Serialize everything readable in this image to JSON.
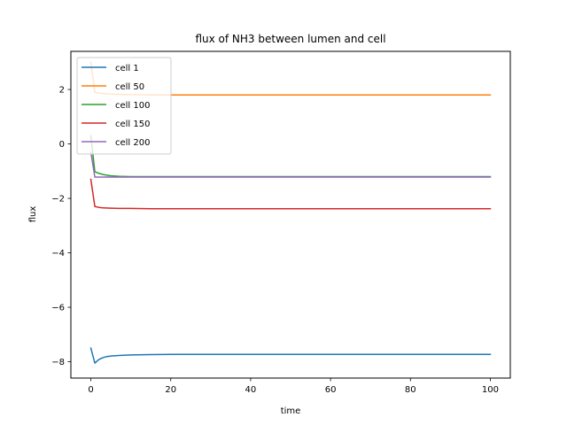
{
  "chart_data": {
    "type": "line",
    "title": "flux of NH3 between lumen and cell",
    "xlabel": "time",
    "ylabel": "flux",
    "xlim": [
      -5,
      105
    ],
    "ylim": [
      -8.6,
      3.4
    ],
    "xticks": [
      0,
      20,
      40,
      60,
      80,
      100
    ],
    "yticks": [
      -8,
      -6,
      -4,
      -2,
      0,
      2
    ],
    "ytick_labels": [
      "−8",
      "−6",
      "−4",
      "−2",
      "0",
      "2"
    ],
    "grid": false,
    "legend": "top-left",
    "series": [
      {
        "name": "cell 1",
        "color": "#1f77b4",
        "x": [
          0,
          1,
          2,
          3,
          4,
          5,
          7,
          10,
          15,
          20,
          30,
          50,
          100
        ],
        "y": [
          -7.5,
          -8.05,
          -7.92,
          -7.85,
          -7.81,
          -7.79,
          -7.77,
          -7.75,
          -7.74,
          -7.73,
          -7.73,
          -7.73,
          -7.73
        ]
      },
      {
        "name": "cell 50",
        "color": "#ff7f0e",
        "x": [
          0,
          1,
          2,
          3,
          5,
          7,
          10,
          15,
          20,
          30,
          50,
          100
        ],
        "y": [
          3.0,
          1.9,
          1.87,
          1.85,
          1.83,
          1.82,
          1.81,
          1.8,
          1.8,
          1.8,
          1.8,
          1.8
        ]
      },
      {
        "name": "cell 100",
        "color": "#2ca02c",
        "x": [
          0,
          1,
          2,
          3,
          4,
          5,
          7,
          10,
          15,
          20,
          30,
          50,
          100
        ],
        "y": [
          0.3,
          -1.02,
          -1.08,
          -1.12,
          -1.15,
          -1.17,
          -1.19,
          -1.2,
          -1.2,
          -1.2,
          -1.2,
          -1.2,
          -1.2
        ]
      },
      {
        "name": "cell 150",
        "color": "#d62728",
        "x": [
          0,
          1,
          2,
          3,
          5,
          7,
          10,
          15,
          20,
          30,
          50,
          100
        ],
        "y": [
          -1.3,
          -2.3,
          -2.33,
          -2.35,
          -2.36,
          -2.37,
          -2.37,
          -2.38,
          -2.38,
          -2.38,
          -2.38,
          -2.38
        ]
      },
      {
        "name": "cell 200",
        "color": "#9467bd",
        "x": [
          0,
          1,
          2,
          3,
          5,
          10,
          20,
          50,
          100
        ],
        "y": [
          -0.3,
          -1.22,
          -1.22,
          -1.22,
          -1.22,
          -1.22,
          -1.22,
          -1.22,
          -1.22
        ]
      }
    ]
  }
}
